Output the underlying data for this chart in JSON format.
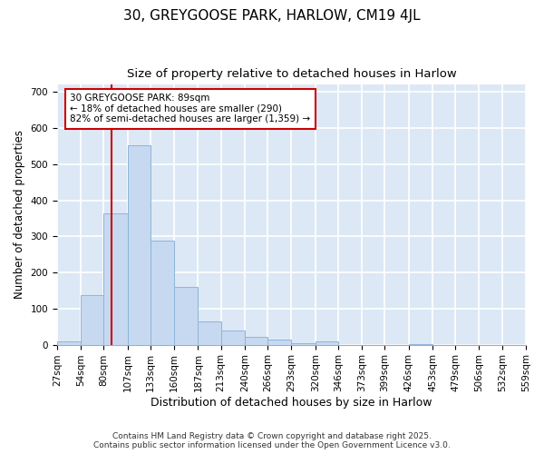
{
  "title1": "30, GREYGOOSE PARK, HARLOW, CM19 4JL",
  "title2": "Size of property relative to detached houses in Harlow",
  "xlabel": "Distribution of detached houses by size in Harlow",
  "ylabel": "Number of detached properties",
  "bar_edges": [
    27,
    54,
    80,
    107,
    133,
    160,
    187,
    213,
    240,
    266,
    293,
    320,
    346,
    373,
    399,
    426,
    453,
    479,
    506,
    532,
    559
  ],
  "bar_heights": [
    10,
    137,
    363,
    553,
    289,
    160,
    65,
    40,
    22,
    13,
    5,
    8,
    0,
    0,
    0,
    2,
    0,
    0,
    0,
    0
  ],
  "bar_color": "#c6d9f0",
  "bar_edge_color": "#8fb4d9",
  "property_size": 89,
  "vline_color": "#cc0000",
  "annotation_text": "30 GREYGOOSE PARK: 89sqm\n← 18% of detached houses are smaller (290)\n82% of semi-detached houses are larger (1,359) →",
  "annotation_box_color": "#cc0000",
  "annotation_text_color": "black",
  "ylim": [
    0,
    720
  ],
  "yticks": [
    0,
    100,
    200,
    300,
    400,
    500,
    600,
    700
  ],
  "background_color": "#dce8f5",
  "grid_color": "white",
  "footnote1": "Contains HM Land Registry data © Crown copyright and database right 2025.",
  "footnote2": "Contains public sector information licensed under the Open Government Licence v3.0.",
  "title_fontsize": 11,
  "subtitle_fontsize": 9.5,
  "xlabel_fontsize": 9,
  "ylabel_fontsize": 8.5,
  "tick_fontsize": 7.5,
  "footnote_fontsize": 6.5
}
